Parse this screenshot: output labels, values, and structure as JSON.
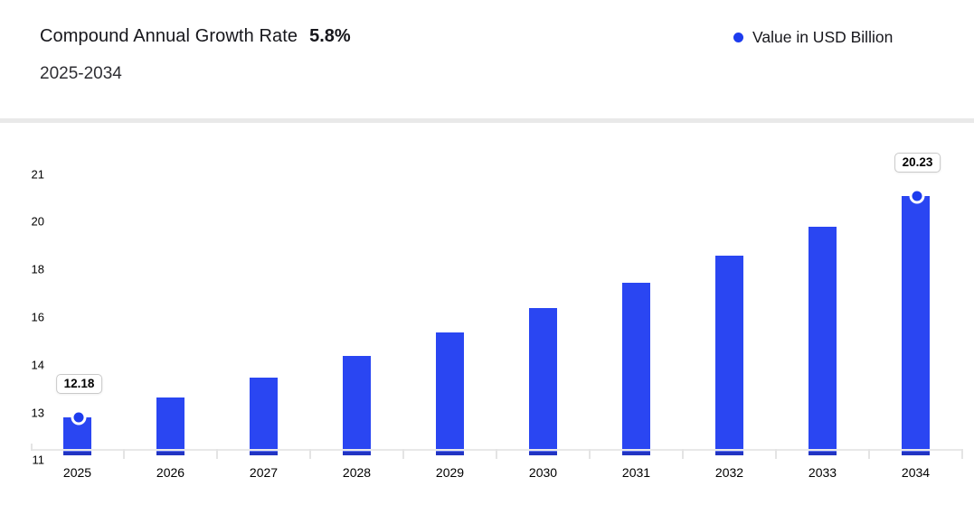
{
  "header": {
    "title": "Compound Annual Growth Rate",
    "rate": "5.8%",
    "subtitle": "2025-2034",
    "legend_label": "Value in USD Billion"
  },
  "colors": {
    "bar": "#2a46f2",
    "marker_dot": "#1d3cee",
    "bar_base_stripe": "#2134c3",
    "axis_line": "#e8e8e8",
    "divider_band": "#e9e9e9"
  },
  "chart_data": {
    "type": "bar",
    "title": "Compound Annual Growth Rate 5.8%",
    "subtitle": "2025-2034",
    "legend": [
      "Value in USD Billion"
    ],
    "legend_position": "top-right",
    "grid": false,
    "categories": [
      "2025",
      "2026",
      "2027",
      "2028",
      "2029",
      "2030",
      "2031",
      "2032",
      "2033",
      "2034"
    ],
    "series": [
      {
        "name": "Value in USD Billion",
        "values": [
          12.18,
          12.89,
          13.63,
          14.42,
          15.26,
          16.15,
          17.08,
          18.07,
          19.12,
          20.23
        ]
      }
    ],
    "y_axis_tick_labels": [
      "21",
      "20",
      "18",
      "16",
      "14",
      "13",
      "11"
    ],
    "y_range_linear": [
      11,
      21
    ],
    "data_labels": [
      {
        "index": 0,
        "text": "12.18"
      },
      {
        "index": 9,
        "text": "20.23"
      }
    ],
    "markers_on_indices": [
      0,
      9
    ]
  }
}
